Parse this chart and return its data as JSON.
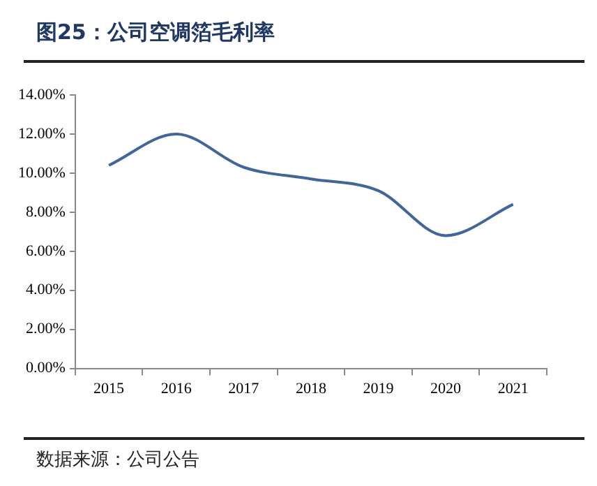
{
  "chart_data": {
    "type": "line",
    "title": "图25：公司空调箔毛利率",
    "categories": [
      "2015",
      "2016",
      "2017",
      "2018",
      "2019",
      "2020",
      "2021"
    ],
    "series": [
      {
        "color": "#41669a",
        "values": [
          10.4,
          12.0,
          10.3,
          9.7,
          9.1,
          6.8,
          8.4
        ]
      }
    ],
    "ylim": [
      0,
      14
    ],
    "yticks": [
      {
        "value": 0,
        "label": "0.00%"
      },
      {
        "value": 2,
        "label": "2.00%"
      },
      {
        "value": 4,
        "label": "4.00%"
      },
      {
        "value": 6,
        "label": "6.00%"
      },
      {
        "value": 8,
        "label": "8.00%"
      },
      {
        "value": 10,
        "label": "10.00%"
      },
      {
        "value": 12,
        "label": "12.00%"
      },
      {
        "value": 14,
        "label": "14.00%"
      }
    ],
    "grid": false,
    "legend": false,
    "marker": "none",
    "line_style": "solid",
    "annotations": [
      "数据来源：公司公告"
    ]
  }
}
